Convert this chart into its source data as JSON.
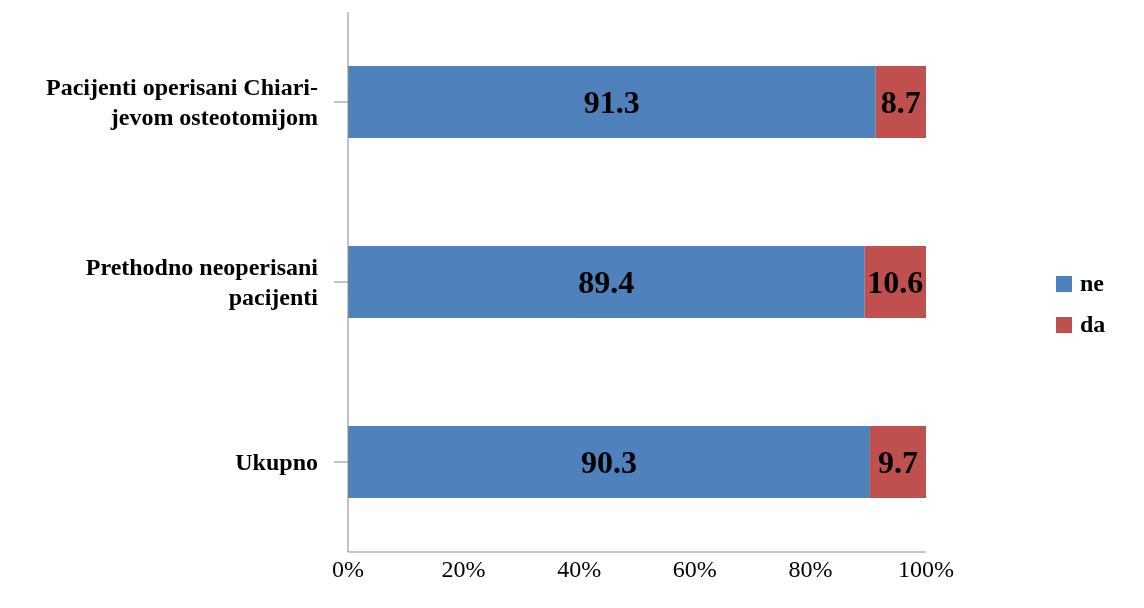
{
  "chart_data": {
    "type": "bar",
    "orientation": "horizontal",
    "stacked": true,
    "categories": [
      "Pacijenti operisani Chiari-jevom osteotomijom",
      "Prethodno neoperisani pacijenti",
      "Ukupno"
    ],
    "series": [
      {
        "name": "ne",
        "color": "#4f81bd",
        "values": [
          91.3,
          89.4,
          90.3
        ]
      },
      {
        "name": "da",
        "color": "#c0504d",
        "values": [
          8.7,
          10.6,
          9.7
        ]
      }
    ],
    "xlim": [
      0,
      100
    ],
    "xticks": [
      {
        "value": 0,
        "label": "0%"
      },
      {
        "value": 20,
        "label": "20%"
      },
      {
        "value": 40,
        "label": "40%"
      },
      {
        "value": 60,
        "label": "60%"
      },
      {
        "value": 80,
        "label": "80%"
      },
      {
        "value": 100,
        "label": "100%"
      }
    ],
    "data_labels": true,
    "legend": "right",
    "grid": false
  }
}
